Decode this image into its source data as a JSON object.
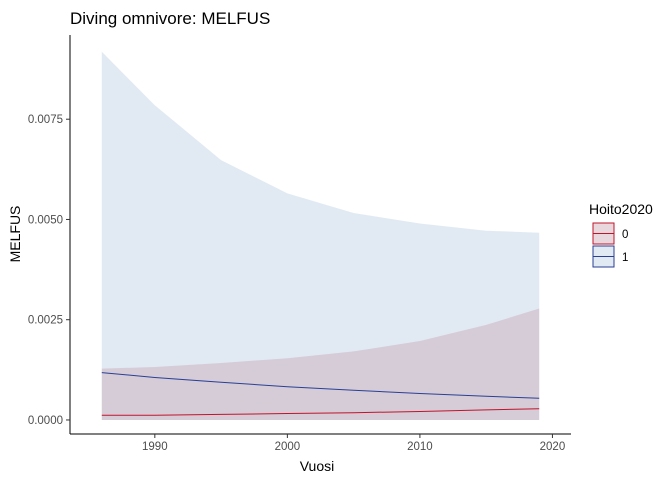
{
  "chart_data": {
    "type": "area",
    "title": "Diving omnivore: MELFUS",
    "xlabel": "Vuosi",
    "ylabel": "MELFUS",
    "xlim": [
      1983.6,
      2021.4
    ],
    "ylim": [
      -0.00035,
      0.0096
    ],
    "x_ticks": [
      1990,
      2000,
      2010,
      2020
    ],
    "y_ticks": [
      0.0,
      0.0025,
      0.005,
      0.0075
    ],
    "y_tick_labels": [
      "0.0000",
      "0.0025",
      "0.0050",
      "0.0075"
    ],
    "grid": false,
    "legend": {
      "title": "Hoito2020",
      "position": "right",
      "entries": [
        "0",
        "1"
      ]
    },
    "series": [
      {
        "name": "0",
        "line_color": "#c0142b",
        "fill_color": "#c9a3b0",
        "x": [
          1986,
          1990,
          1995,
          2000,
          2005,
          2010,
          2015,
          2019
        ],
        "fit": [
          0.00012,
          0.00012,
          0.00014,
          0.00016,
          0.00018,
          0.00021,
          0.00025,
          0.00028
        ],
        "lower": [
          0.0,
          0.0,
          0.0,
          0.0,
          0.0,
          0.0,
          0.0,
          0.0
        ],
        "upper": [
          0.00128,
          0.00132,
          0.00142,
          0.00154,
          0.00171,
          0.00197,
          0.00237,
          0.00278
        ]
      },
      {
        "name": "1",
        "line_color": "#2a3f95",
        "fill_color": "#b7cde2",
        "x": [
          1986,
          1990,
          1995,
          2000,
          2005,
          2010,
          2015,
          2019
        ],
        "fit": [
          0.00118,
          0.00106,
          0.00094,
          0.00083,
          0.00074,
          0.00066,
          0.00059,
          0.00054
        ],
        "lower": [
          0.0,
          0.0,
          0.0,
          0.0,
          0.0,
          0.0,
          0.0,
          0.0
        ],
        "upper": [
          0.00918,
          0.00785,
          0.00648,
          0.00565,
          0.00516,
          0.0049,
          0.00472,
          0.00467
        ]
      }
    ]
  }
}
